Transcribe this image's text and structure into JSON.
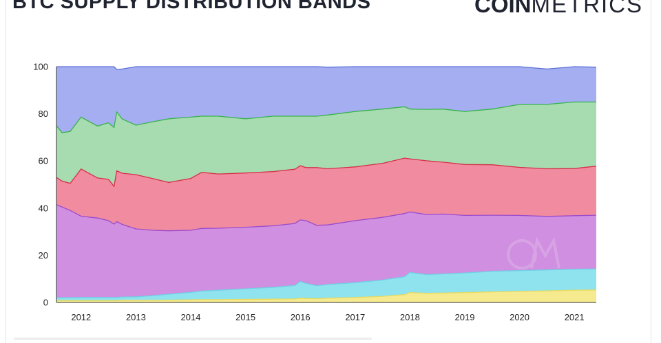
{
  "header": {
    "title": "BTC SUPPLY DISTRIBUTION BANDS",
    "logo_bold": "COIN",
    "logo_light": "METRICS"
  },
  "chart_data": {
    "type": "area",
    "stacked": true,
    "title": "BTC SUPPLY DISTRIBUTION BANDS",
    "xlabel": "",
    "ylabel": "",
    "ylim": [
      0,
      100
    ],
    "yticks": [
      "0",
      "20",
      "40",
      "60",
      "80",
      "100"
    ],
    "xticks": [
      "2012",
      "2013",
      "2014",
      "2015",
      "2016",
      "2017",
      "2018",
      "2019",
      "2020",
      "2021"
    ],
    "grid": false,
    "legend": "none",
    "colors": [
      "#f6ea8f",
      "#8ee3ee",
      "#d08fe0",
      "#f08ba0",
      "#a7dbb0",
      "#a4aef0"
    ],
    "line_colors": [
      "#e8d960",
      "#6fd0e4",
      "#9b4bcc",
      "#d63048",
      "#39b34e",
      "#5a70d8"
    ],
    "x": [
      2011.55,
      2011.65,
      2011.8,
      2012.0,
      2012.3,
      2012.5,
      2012.6,
      2012.65,
      2012.75,
      2013.0,
      2013.3,
      2013.6,
      2014.0,
      2014.2,
      2014.5,
      2015.0,
      2015.5,
      2015.9,
      2016.0,
      2016.1,
      2016.3,
      2016.5,
      2017.0,
      2017.5,
      2017.9,
      2018.0,
      2018.3,
      2018.6,
      2019.0,
      2019.5,
      2020.0,
      2020.5,
      2021.0,
      2021.4
    ],
    "series": [
      {
        "values": [
          0.8,
          0.8,
          0.8,
          0.8,
          0.8,
          0.8,
          0.8,
          0.8,
          0.9,
          0.9,
          0.9,
          1.0,
          1.1,
          1.2,
          1.2,
          1.3,
          1.4,
          1.5,
          1.8,
          1.7,
          1.6,
          1.8,
          2.1,
          2.6,
          3.3,
          4.2,
          3.9,
          4.0,
          4.2,
          4.5,
          4.7,
          4.9,
          5.2,
          5.3
        ]
      },
      {
        "values": [
          1.2,
          1.2,
          1.2,
          1.3,
          1.3,
          1.3,
          1.3,
          1.3,
          1.4,
          1.5,
          2.0,
          2.5,
          3.2,
          3.6,
          4.0,
          4.5,
          5.0,
          5.7,
          7.1,
          6.4,
          5.5,
          5.8,
          6.3,
          6.9,
          7.6,
          8.5,
          7.9,
          8.1,
          8.3,
          8.7,
          8.8,
          8.9,
          8.9,
          8.9
        ]
      },
      {
        "values": [
          39.5,
          38.5,
          37.0,
          34.5,
          33.7,
          32.6,
          31.1,
          32.2,
          30.8,
          28.8,
          27.7,
          26.9,
          26.3,
          26.6,
          26.3,
          26.1,
          26.1,
          26.3,
          26.1,
          26.6,
          25.6,
          25.3,
          26.3,
          26.6,
          26.8,
          25.7,
          25.5,
          25.4,
          24.4,
          23.8,
          23.4,
          22.7,
          22.7,
          22.8
        ]
      },
      {
        "values": [
          11.5,
          11.0,
          11.5,
          20.0,
          17.0,
          17.5,
          16.0,
          21.5,
          21.7,
          23.0,
          22.0,
          20.5,
          22.0,
          23.8,
          23.0,
          23.0,
          23.0,
          23.0,
          23.0,
          22.5,
          24.5,
          23.8,
          22.8,
          22.9,
          23.5,
          22.5,
          22.8,
          22.0,
          21.6,
          21.4,
          20.4,
          20.2,
          20.0,
          20.8
        ]
      },
      {
        "values": [
          22.0,
          20.5,
          22.0,
          22.0,
          22.0,
          24.0,
          25.0,
          25.0,
          23.0,
          21.0,
          24.0,
          27.0,
          26.0,
          23.8,
          24.5,
          23.0,
          23.5,
          22.5,
          21.0,
          21.8,
          21.8,
          22.8,
          23.5,
          23.0,
          21.8,
          21.1,
          21.8,
          22.5,
          22.5,
          23.6,
          26.7,
          27.3,
          28.2,
          27.2
        ]
      },
      {
        "values": [
          25.0,
          28.0,
          27.5,
          21.4,
          25.2,
          23.8,
          26.6,
          18.0,
          21.2,
          24.8,
          23.4,
          22.1,
          21.4,
          21.0,
          21.0,
          22.1,
          21.0,
          21.0,
          21.0,
          21.0,
          21.0,
          20.3,
          19.0,
          18.0,
          17.0,
          18.0,
          18.1,
          18.0,
          19.0,
          18.0,
          16.0,
          15.0,
          15.0,
          14.8
        ]
      }
    ]
  }
}
